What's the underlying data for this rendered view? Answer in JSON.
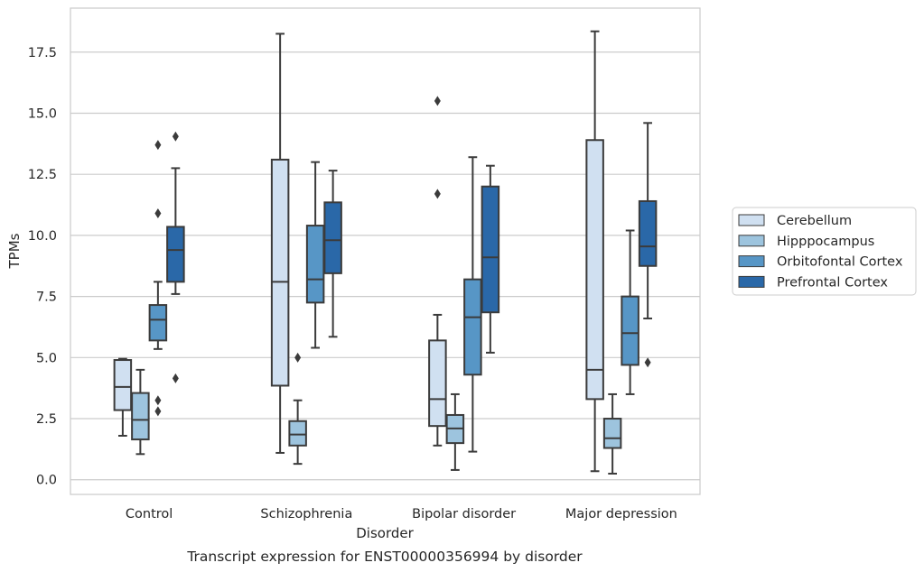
{
  "chart_data": {
    "type": "box",
    "caption": "Transcript expression for ENST00000356994 by disorder",
    "xlabel": "Disorder",
    "ylabel": "TPMs",
    "ylim": [
      -0.6,
      19.3
    ],
    "yticks": [
      0.0,
      2.5,
      5.0,
      7.5,
      10.0,
      12.5,
      15.0,
      17.5
    ],
    "ytick_labels": [
      "0.0",
      "2.5",
      "5.0",
      "7.5",
      "10.0",
      "12.5",
      "15.0",
      "17.5"
    ],
    "grid": "horizontal",
    "legend_position": "right",
    "categories": [
      "Control",
      "Schizophrenia",
      "Bipolar disorder",
      "Major depression"
    ],
    "series": [
      {
        "name": "Cerebellum",
        "color": "#d0e0f1",
        "boxes": [
          {
            "whisker_low": 1.8,
            "q1": 2.85,
            "median": 3.8,
            "q3": 4.9,
            "whisker_high": 4.95,
            "outliers": []
          },
          {
            "whisker_low": 1.1,
            "q1": 3.85,
            "median": 8.1,
            "q3": 13.1,
            "whisker_high": 18.25,
            "outliers": []
          },
          {
            "whisker_low": 1.4,
            "q1": 2.2,
            "median": 3.3,
            "q3": 5.7,
            "whisker_high": 6.75,
            "outliers": [
              11.7,
              15.5
            ]
          },
          {
            "whisker_low": 0.35,
            "q1": 3.3,
            "median": 4.5,
            "q3": 13.9,
            "whisker_high": 18.35,
            "outliers": []
          }
        ]
      },
      {
        "name": "Hipppocampus",
        "color": "#9dc4de",
        "boxes": [
          {
            "whisker_low": 1.05,
            "q1": 1.65,
            "median": 2.45,
            "q3": 3.55,
            "whisker_high": 4.5,
            "outliers": []
          },
          {
            "whisker_low": 0.65,
            "q1": 1.4,
            "median": 1.85,
            "q3": 2.4,
            "whisker_high": 3.25,
            "outliers": [
              5.0
            ]
          },
          {
            "whisker_low": 0.4,
            "q1": 1.5,
            "median": 2.1,
            "q3": 2.65,
            "whisker_high": 3.5,
            "outliers": []
          },
          {
            "whisker_low": 0.25,
            "q1": 1.3,
            "median": 1.7,
            "q3": 2.5,
            "whisker_high": 3.5,
            "outliers": []
          }
        ]
      },
      {
        "name": "Orbitofontal Cortex",
        "color": "#5796c6",
        "boxes": [
          {
            "whisker_low": 5.35,
            "q1": 5.7,
            "median": 6.55,
            "q3": 7.15,
            "whisker_high": 8.1,
            "outliers": [
              2.8,
              3.25,
              10.9,
              13.7
            ]
          },
          {
            "whisker_low": 5.4,
            "q1": 7.25,
            "median": 8.2,
            "q3": 10.4,
            "whisker_high": 13.0,
            "outliers": []
          },
          {
            "whisker_low": 1.15,
            "q1": 4.3,
            "median": 6.65,
            "q3": 8.2,
            "whisker_high": 13.2,
            "outliers": []
          },
          {
            "whisker_low": 3.5,
            "q1": 4.7,
            "median": 6.0,
            "q3": 7.5,
            "whisker_high": 10.2,
            "outliers": []
          }
        ]
      },
      {
        "name": "Prefrontal Cortex",
        "color": "#2a68a8",
        "boxes": [
          {
            "whisker_low": 7.6,
            "q1": 8.1,
            "median": 9.4,
            "q3": 10.35,
            "whisker_high": 12.75,
            "outliers": [
              4.15,
              14.05
            ]
          },
          {
            "whisker_low": 5.85,
            "q1": 8.45,
            "median": 9.8,
            "q3": 11.35,
            "whisker_high": 12.65,
            "outliers": []
          },
          {
            "whisker_low": 5.2,
            "q1": 6.85,
            "median": 9.1,
            "q3": 12.0,
            "whisker_high": 12.85,
            "outliers": []
          },
          {
            "whisker_low": 6.6,
            "q1": 8.75,
            "median": 9.55,
            "q3": 11.4,
            "whisker_high": 14.6,
            "outliers": [
              4.8
            ]
          }
        ]
      }
    ]
  }
}
